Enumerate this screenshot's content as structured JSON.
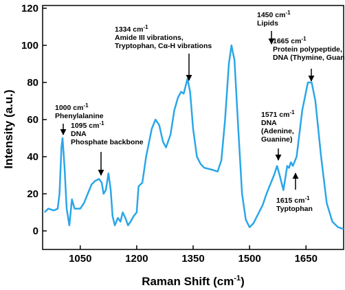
{
  "chart_data": {
    "type": "line",
    "x_label": {
      "text": "Raman Shift (cm",
      "sup": "-1",
      "after": ")"
    },
    "y_label": "Intensity (a.u.)",
    "xlim": [
      950,
      1750
    ],
    "ylim": [
      -10,
      120
    ],
    "xticks": [
      1050,
      1200,
      1350,
      1500,
      1650
    ],
    "yticks": [
      0,
      20,
      40,
      60,
      80,
      100,
      120
    ],
    "series": [
      {
        "color": "#2aa6e8",
        "x": [
          955,
          965,
          980,
          990,
          995,
          1000,
          1003,
          1008,
          1014,
          1021,
          1028,
          1035,
          1042,
          1050,
          1060,
          1070,
          1080,
          1090,
          1100,
          1107,
          1112,
          1118,
          1125,
          1131,
          1136,
          1142,
          1150,
          1157,
          1163,
          1170,
          1177,
          1184,
          1192,
          1200,
          1205,
          1210,
          1215,
          1225,
          1240,
          1250,
          1260,
          1270,
          1278,
          1290,
          1300,
          1310,
          1318,
          1325,
          1335,
          1342,
          1350,
          1360,
          1370,
          1380,
          1400,
          1415,
          1425,
          1435,
          1445,
          1452,
          1460,
          1470,
          1480,
          1490,
          1500,
          1510,
          1520,
          1535,
          1545,
          1555,
          1565,
          1573,
          1580,
          1590,
          1600,
          1605,
          1610,
          1615,
          1625,
          1640,
          1655,
          1665,
          1675,
          1690,
          1705,
          1720,
          1735,
          1750
        ],
        "values": [
          10,
          12,
          11,
          12,
          20,
          45,
          50,
          35,
          12,
          3,
          17,
          12,
          12,
          12,
          15,
          20,
          25,
          27,
          28,
          26,
          20,
          22,
          31,
          22,
          8,
          3,
          7,
          5,
          10,
          7,
          3,
          5,
          8,
          10,
          24,
          25,
          26,
          40,
          55,
          60,
          57,
          48,
          45,
          52,
          65,
          72,
          75,
          74,
          82,
          75,
          55,
          40,
          36,
          34,
          33,
          32,
          38,
          60,
          90,
          100,
          92,
          55,
          20,
          6,
          2,
          4,
          8,
          14,
          20,
          25,
          30,
          35,
          30,
          22,
          35,
          34,
          37,
          35,
          40,
          65,
          80,
          80,
          70,
          40,
          15,
          5,
          2,
          1
        ]
      }
    ],
    "annotations": [
      {
        "head": "1000 cm",
        "sup": "-1",
        "lines": [
          "Phenylalanine"
        ]
      },
      {
        "head": "1095 cm",
        "sup": "-1",
        "lines": [
          "DNA",
          "Phosphate backbone"
        ]
      },
      {
        "head": "1334 cm",
        "sup": "-1",
        "lines": [
          "Amide III vibrations,",
          "Tryptophan, Cα-H vibrations"
        ]
      },
      {
        "head": "1450 cm",
        "sup": "-1",
        "lines": [
          "Lipids"
        ]
      },
      {
        "head": "1665 cm",
        "sup": "-1",
        "lines": [
          "Protein polypeptide,",
          "DNA (Thymine, Guanine)"
        ]
      },
      {
        "head": "1571 cm",
        "sup": "-1",
        "lines": [
          "DNA",
          "(Adenine,",
          "Guanine)"
        ]
      },
      {
        "head": "1615 cm",
        "sup": "-1",
        "lines": [
          "Typtophan"
        ]
      }
    ]
  }
}
